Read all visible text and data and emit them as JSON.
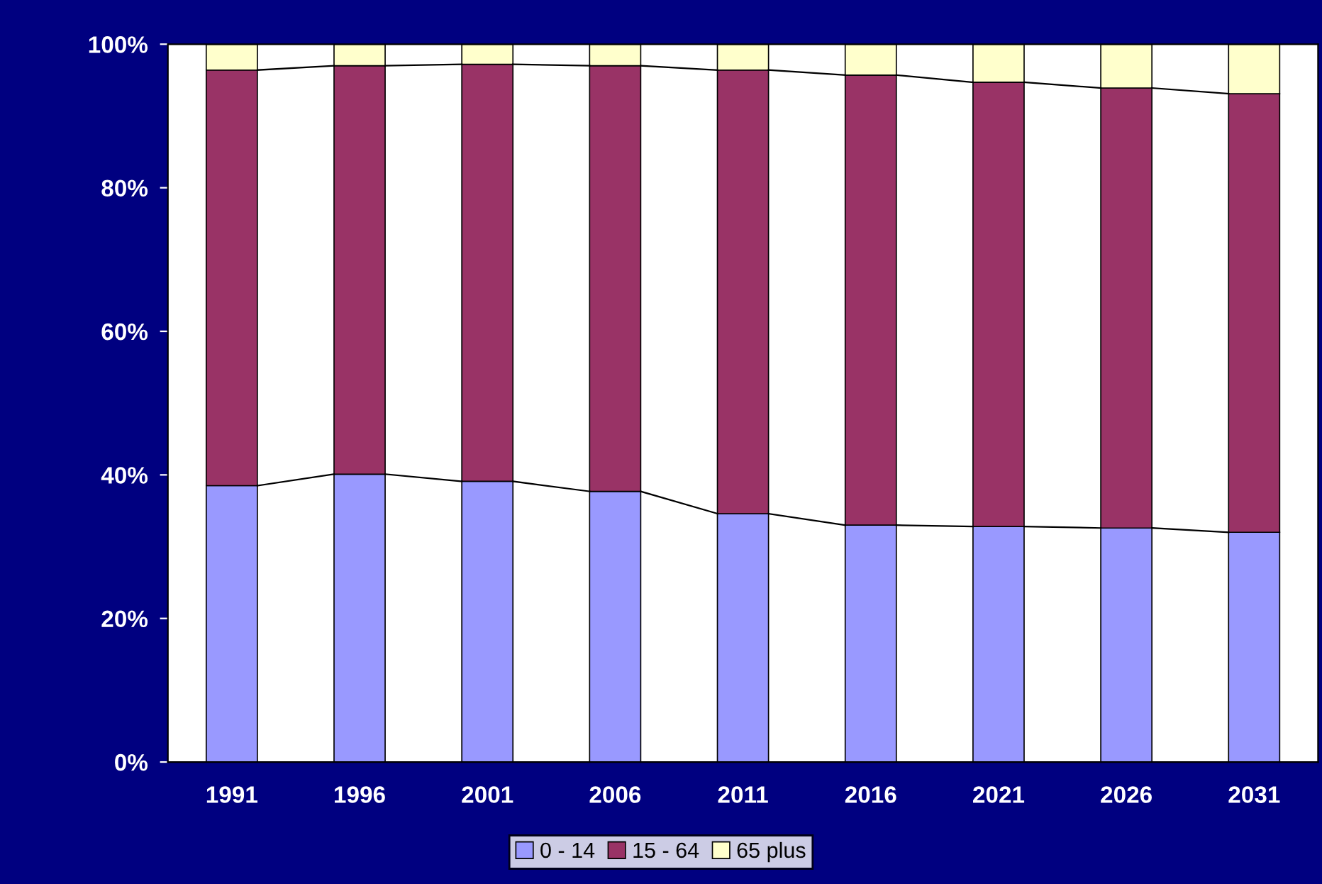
{
  "chart_data": {
    "type": "bar",
    "stacked": true,
    "categories": [
      "1991",
      "1996",
      "2001",
      "2006",
      "2011",
      "2016",
      "2021",
      "2026",
      "2031"
    ],
    "series": [
      {
        "name": "0 - 14",
        "color": "#9999ff",
        "values": [
          38.5,
          40.1,
          39.1,
          37.7,
          34.6,
          33.0,
          32.8,
          32.6,
          32.0
        ]
      },
      {
        "name": "15 - 64",
        "color": "#993366",
        "values": [
          57.9,
          56.9,
          58.1,
          59.3,
          61.8,
          62.7,
          61.9,
          61.3,
          61.1
        ]
      },
      {
        "name": "65 plus",
        "color": "#ffffcc",
        "values": [
          3.6,
          3.0,
          2.8,
          3.0,
          3.6,
          4.3,
          5.3,
          6.1,
          6.9
        ]
      }
    ],
    "ylim": [
      0,
      100
    ],
    "yticks": [
      {
        "value": 0,
        "label": "0%"
      },
      {
        "value": 20,
        "label": "20%"
      },
      {
        "value": 40,
        "label": "40%"
      },
      {
        "value": 60,
        "label": "60%"
      },
      {
        "value": 80,
        "label": "80%"
      },
      {
        "value": 100,
        "label": "100%"
      }
    ],
    "grid": false,
    "legend": "bottom"
  }
}
